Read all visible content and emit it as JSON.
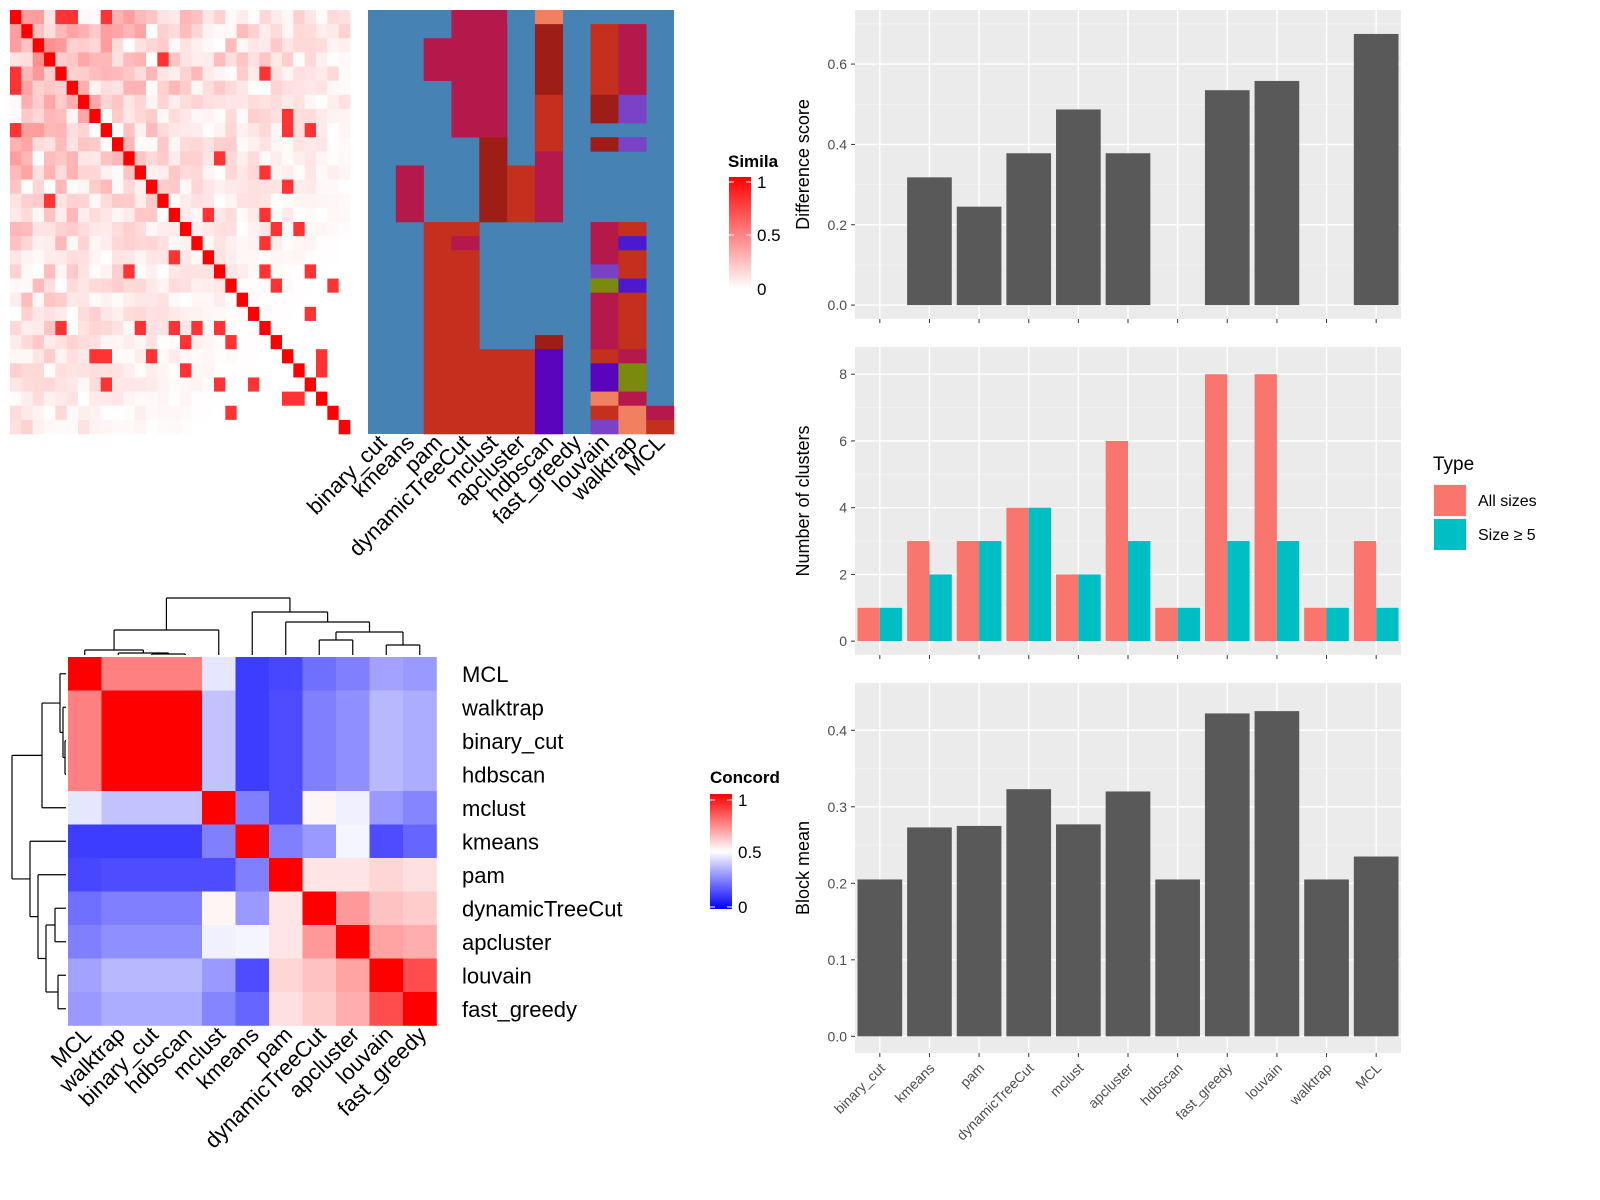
{
  "method_order": [
    "binary_cut",
    "kmeans",
    "pam",
    "dynamicTreeCut",
    "mclust",
    "apcluster",
    "hdbscan",
    "fast_greedy",
    "louvain",
    "walktrap",
    "MCL"
  ],
  "similarity_legend": {
    "title": "Simila",
    "ticks": [
      "1",
      "0.5",
      "0"
    ]
  },
  "concordance_legend": {
    "title": "Concord",
    "ticks": [
      "1",
      "0.5",
      "0"
    ]
  },
  "concordance_order": [
    "MCL",
    "walktrap",
    "binary_cut",
    "hdbscan",
    "mclust",
    "kmeans",
    "pam",
    "dynamicTreeCut",
    "apcluster",
    "louvain",
    "fast_greedy"
  ],
  "concordance_matrix": [
    [
      1.0,
      0.75,
      0.75,
      0.75,
      0.45,
      0.12,
      0.14,
      0.22,
      0.25,
      0.32,
      0.3
    ],
    [
      0.75,
      1.0,
      1.0,
      1.0,
      0.38,
      0.12,
      0.15,
      0.25,
      0.28,
      0.36,
      0.34
    ],
    [
      0.75,
      1.0,
      1.0,
      1.0,
      0.38,
      0.12,
      0.15,
      0.25,
      0.28,
      0.36,
      0.34
    ],
    [
      0.75,
      1.0,
      1.0,
      1.0,
      0.38,
      0.12,
      0.15,
      0.25,
      0.28,
      0.36,
      0.34
    ],
    [
      0.45,
      0.38,
      0.38,
      0.38,
      1.0,
      0.25,
      0.15,
      0.52,
      0.47,
      0.3,
      0.26
    ],
    [
      0.12,
      0.12,
      0.12,
      0.12,
      0.25,
      1.0,
      0.25,
      0.3,
      0.48,
      0.15,
      0.2
    ],
    [
      0.14,
      0.15,
      0.15,
      0.15,
      0.15,
      0.25,
      1.0,
      0.55,
      0.55,
      0.58,
      0.56
    ],
    [
      0.22,
      0.25,
      0.25,
      0.25,
      0.52,
      0.3,
      0.55,
      1.0,
      0.7,
      0.62,
      0.6
    ],
    [
      0.25,
      0.28,
      0.28,
      0.28,
      0.47,
      0.48,
      0.55,
      0.7,
      1.0,
      0.68,
      0.66
    ],
    [
      0.32,
      0.36,
      0.36,
      0.36,
      0.3,
      0.15,
      0.58,
      0.62,
      0.68,
      1.0,
      0.85
    ],
    [
      0.3,
      0.34,
      0.34,
      0.34,
      0.26,
      0.2,
      0.56,
      0.6,
      0.66,
      0.85,
      1.0
    ]
  ],
  "chart_data": [
    {
      "type": "bar",
      "categories": [
        "binary_cut",
        "kmeans",
        "pam",
        "dynamicTreeCut",
        "mclust",
        "apcluster",
        "hdbscan",
        "fast_greedy",
        "louvain",
        "walktrap",
        "MCL"
      ],
      "values": [
        0,
        0.318,
        0.245,
        0.378,
        0.487,
        0.378,
        0,
        0.535,
        0.558,
        0,
        0.675
      ],
      "ylabel": "Difference score",
      "ylim": [
        0,
        0.7
      ],
      "yticks": [
        "0.0",
        "0.2",
        "0.4",
        "0.6"
      ],
      "color": "#595959",
      "grid": true
    },
    {
      "type": "bar",
      "categories": [
        "binary_cut",
        "kmeans",
        "pam",
        "dynamicTreeCut",
        "mclust",
        "apcluster",
        "hdbscan",
        "fast_greedy",
        "louvain",
        "walktrap",
        "MCL"
      ],
      "series": [
        {
          "name": "All sizes",
          "values": [
            1,
            3,
            3,
            4,
            2,
            6,
            1,
            8,
            8,
            1,
            3
          ],
          "color": "#F8766D"
        },
        {
          "name": "Size ≥ 5",
          "values": [
            1,
            2,
            3,
            4,
            2,
            3,
            1,
            3,
            3,
            1,
            1
          ],
          "color": "#00BFC4"
        }
      ],
      "ylabel": "Number of clusters",
      "ylim": [
        0,
        8.4
      ],
      "yticks": [
        "0",
        "2",
        "4",
        "6",
        "8"
      ],
      "legend_title": "Type",
      "legend_position": "right",
      "grid": true
    },
    {
      "type": "bar",
      "categories": [
        "binary_cut",
        "kmeans",
        "pam",
        "dynamicTreeCut",
        "mclust",
        "apcluster",
        "hdbscan",
        "fast_greedy",
        "louvain",
        "walktrap",
        "MCL"
      ],
      "values": [
        0.205,
        0.273,
        0.275,
        0.323,
        0.277,
        0.32,
        0.205,
        0.422,
        0.425,
        0.205,
        0.235
      ],
      "ylabel": "Block mean",
      "ylim": [
        0,
        0.44
      ],
      "yticks": [
        "0.0",
        "0.1",
        "0.2",
        "0.3",
        "0.4"
      ],
      "color": "#595959",
      "grid": true
    }
  ],
  "colors": {
    "panel_bg": "#EBEBEB",
    "grid": "#FFFFFF",
    "axis_text": "#4D4D4D",
    "steelblue": "#4682B4",
    "heat_red": "#FF0000"
  }
}
